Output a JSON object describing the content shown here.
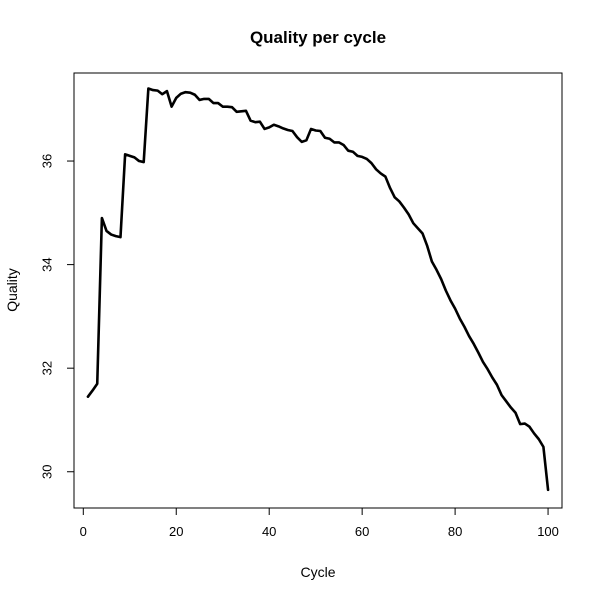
{
  "chart_data": {
    "type": "line",
    "title": "Quality per cycle",
    "xlabel": "Cycle",
    "ylabel": "Quality",
    "xlim": [
      -2,
      103
    ],
    "ylim": [
      29.3,
      37.7
    ],
    "x_ticks": [
      0,
      20,
      40,
      60,
      80,
      100
    ],
    "y_ticks": [
      30,
      32,
      34,
      36
    ],
    "grid": false,
    "legend": "none",
    "line_color": "#000000",
    "series": [
      {
        "x": [
          1,
          2,
          3,
          4,
          5,
          6,
          7,
          8,
          9,
          10,
          11,
          12,
          13,
          14,
          15,
          16,
          17,
          18,
          19,
          20,
          21,
          22,
          23,
          24,
          25,
          26,
          27,
          28,
          29,
          30,
          31,
          32,
          33,
          34,
          35,
          36,
          37,
          38,
          39,
          40,
          41,
          42,
          43,
          44,
          45,
          46,
          47,
          48,
          49,
          50,
          51,
          52,
          53,
          54,
          55,
          56,
          57,
          58,
          59,
          60,
          61,
          62,
          63,
          64,
          65,
          66,
          67,
          68,
          69,
          70,
          71,
          72,
          73,
          74,
          75,
          76,
          77,
          78,
          79,
          80,
          81,
          82,
          83,
          84,
          85,
          86,
          87,
          88,
          89,
          90,
          91,
          92,
          93,
          94,
          95,
          96,
          97,
          98,
          99,
          100
        ],
        "values": [
          31.45,
          31.57,
          31.7,
          34.9,
          34.65,
          34.58,
          34.55,
          34.53,
          36.13,
          36.1,
          36.07,
          36.0,
          35.98,
          37.4,
          37.37,
          37.36,
          37.29,
          37.35,
          37.05,
          37.22,
          37.3,
          37.33,
          37.32,
          37.28,
          37.18,
          37.2,
          37.2,
          37.12,
          37.12,
          37.05,
          37.05,
          37.04,
          36.95,
          36.96,
          36.97,
          36.78,
          36.75,
          36.76,
          36.62,
          36.65,
          36.7,
          36.67,
          36.63,
          36.6,
          36.58,
          36.46,
          36.37,
          36.4,
          36.62,
          36.59,
          36.58,
          36.45,
          36.43,
          36.36,
          36.36,
          36.31,
          36.2,
          36.18,
          36.1,
          36.08,
          36.04,
          35.96,
          35.84,
          35.76,
          35.7,
          35.48,
          35.3,
          35.22,
          35.1,
          34.97,
          34.8,
          34.7,
          34.6,
          34.36,
          34.06,
          33.9,
          33.72,
          33.5,
          33.31,
          33.15,
          32.96,
          32.8,
          32.62,
          32.47,
          32.3,
          32.12,
          31.98,
          31.82,
          31.68,
          31.48,
          31.36,
          31.24,
          31.14,
          30.92,
          30.93,
          30.87,
          30.74,
          30.63,
          30.48,
          29.65
        ]
      }
    ]
  }
}
